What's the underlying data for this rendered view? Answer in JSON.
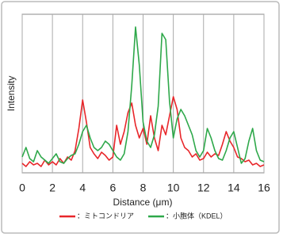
{
  "chart_data": {
    "type": "line",
    "x_label": "Distance (μm)",
    "y_label": "Intensity",
    "x": [
      0,
      0.25,
      0.5,
      0.75,
      1,
      1.25,
      1.5,
      1.75,
      2,
      2.25,
      2.5,
      2.75,
      3,
      3.25,
      3.5,
      3.75,
      4,
      4.25,
      4.5,
      4.75,
      5,
      5.25,
      5.5,
      5.75,
      6,
      6.25,
      6.5,
      6.75,
      7,
      7.25,
      7.5,
      7.75,
      8,
      8.25,
      8.5,
      8.75,
      9,
      9.25,
      9.5,
      9.75,
      10,
      10.25,
      10.5,
      10.75,
      11,
      11.25,
      11.5,
      11.75,
      12,
      12.25,
      12.5,
      12.75,
      13,
      13.25,
      13.5,
      13.75,
      14,
      14.25,
      14.5,
      14.75,
      15,
      15.25,
      15.5,
      15.75,
      16
    ],
    "series": [
      {
        "name": "：ミトコンドリア",
        "color": "#e8262a",
        "values": [
          6,
          4,
          7,
          5,
          6,
          4,
          8,
          5,
          7,
          5,
          9,
          6,
          10,
          8,
          14,
          28,
          46,
          32,
          16,
          12,
          9,
          13,
          11,
          8,
          10,
          30,
          18,
          26,
          38,
          44,
          30,
          22,
          28,
          18,
          36,
          22,
          14,
          30,
          24,
          36,
          48,
          40,
          22,
          16,
          14,
          10,
          12,
          8,
          9,
          13,
          10,
          12,
          11,
          18,
          26,
          20,
          16,
          10,
          9,
          7,
          8,
          5,
          6,
          4,
          5
        ]
      },
      {
        "name": "：小胞体（KDEL）",
        "color": "#2ea84a",
        "values": [
          10,
          16,
          9,
          7,
          14,
          10,
          8,
          6,
          9,
          12,
          7,
          6,
          9,
          11,
          12,
          18,
          26,
          30,
          22,
          16,
          14,
          16,
          20,
          18,
          14,
          10,
          8,
          12,
          26,
          55,
          92,
          68,
          32,
          20,
          16,
          24,
          42,
          88,
          84,
          45,
          22,
          34,
          40,
          36,
          30,
          24,
          14,
          10,
          14,
          28,
          22,
          14,
          9,
          8,
          14,
          22,
          26,
          16,
          6,
          9,
          20,
          28,
          14,
          8,
          7
        ]
      }
    ],
    "xlim": [
      0,
      16
    ],
    "xticks": [
      0,
      2,
      4,
      6,
      8,
      10,
      12,
      14,
      16
    ],
    "ylim": [
      0,
      100
    ],
    "grid": true
  }
}
